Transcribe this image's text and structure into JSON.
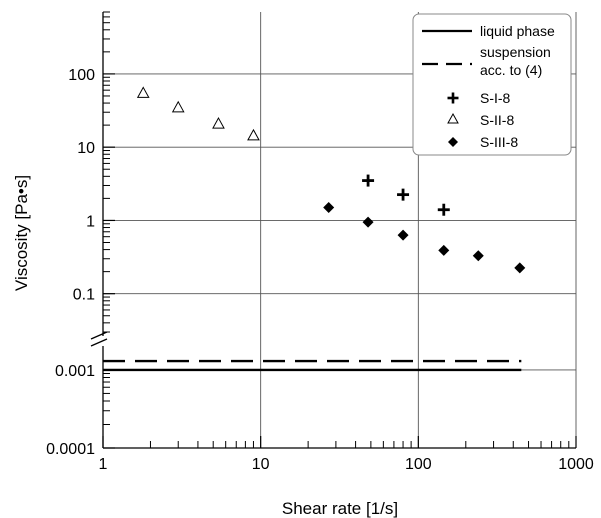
{
  "chart_data": {
    "type": "scatter",
    "xlabel": "Shear rate [1/s]",
    "ylabel": "Viscosity [Pa•s]",
    "x_scale": "log",
    "y_scale": "log",
    "y_axis_break": "between 0.1 and 0.001",
    "xlim": [
      1,
      1000
    ],
    "ylim_upper": [
      0.03,
      700
    ],
    "ylim_lower": [
      0.0001,
      0.0018
    ],
    "x_ticks": [
      "1",
      "10",
      "100",
      "1000"
    ],
    "y_ticks_upper": [
      "0.1",
      "1",
      "10",
      "100"
    ],
    "y_ticks_lower": [
      "0.0001",
      "0.001"
    ],
    "grid": true,
    "legend_position": "top-right",
    "series": [
      {
        "name": "liquid phase",
        "kind": "line",
        "style": "solid",
        "x": [
          1,
          450
        ],
        "y": [
          0.001,
          0.001
        ]
      },
      {
        "name": "suspension acc. to (4)",
        "name_lines": [
          "suspension",
          "acc. to (4)"
        ],
        "kind": "line",
        "style": "dashed",
        "x": [
          1,
          450
        ],
        "y": [
          0.0013,
          0.0013
        ]
      },
      {
        "name": "S-I-8",
        "kind": "markers",
        "marker": "plus",
        "x": [
          48,
          80,
          145
        ],
        "y": [
          3.5,
          2.25,
          1.4
        ]
      },
      {
        "name": "S-II-8",
        "kind": "markers",
        "marker": "triangle-open",
        "x": [
          1.8,
          3.0,
          5.4,
          9.0
        ],
        "y": [
          55,
          35,
          21,
          14.5
        ]
      },
      {
        "name": "S-III-8",
        "kind": "markers",
        "marker": "diamond",
        "x": [
          27,
          48,
          80,
          145,
          240,
          440
        ],
        "y": [
          1.5,
          0.95,
          0.63,
          0.39,
          0.33,
          0.225
        ]
      }
    ]
  }
}
